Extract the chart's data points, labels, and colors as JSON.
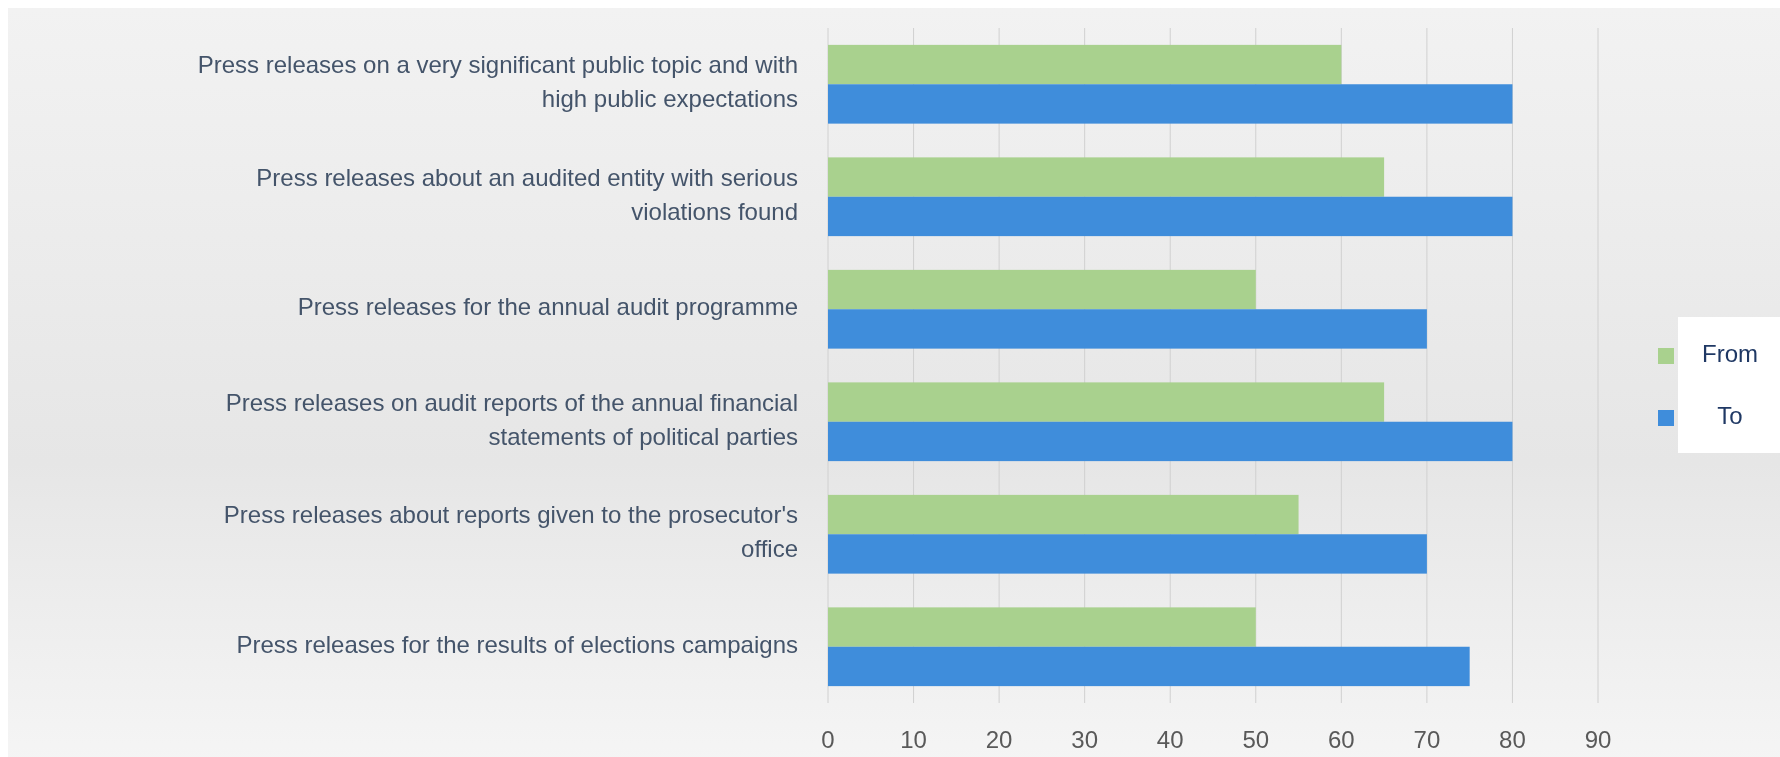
{
  "chart_data": {
    "type": "bar",
    "orientation": "horizontal",
    "categories": [
      "Press releases on a very significant public topic and with high public expectations",
      "Press releases about an audited entity with serious violations found",
      "Press releases for the annual audit programme",
      "Press releases on audit reports of the annual financial statements of political parties",
      "Press releases about reports given to the prosecutor's office",
      "Press releases for the results of elections campaigns"
    ],
    "series": [
      {
        "name": "From",
        "color": "#a9d18e",
        "values": [
          60,
          65,
          50,
          65,
          55,
          50
        ]
      },
      {
        "name": "To",
        "color": "#3f8ddb",
        "values": [
          80,
          80,
          70,
          80,
          70,
          75
        ]
      }
    ],
    "xlim": [
      0,
      90
    ],
    "xticks": [
      0,
      10,
      20,
      30,
      40,
      50,
      60,
      70,
      80,
      90
    ],
    "grid": "x",
    "legend": "right"
  }
}
